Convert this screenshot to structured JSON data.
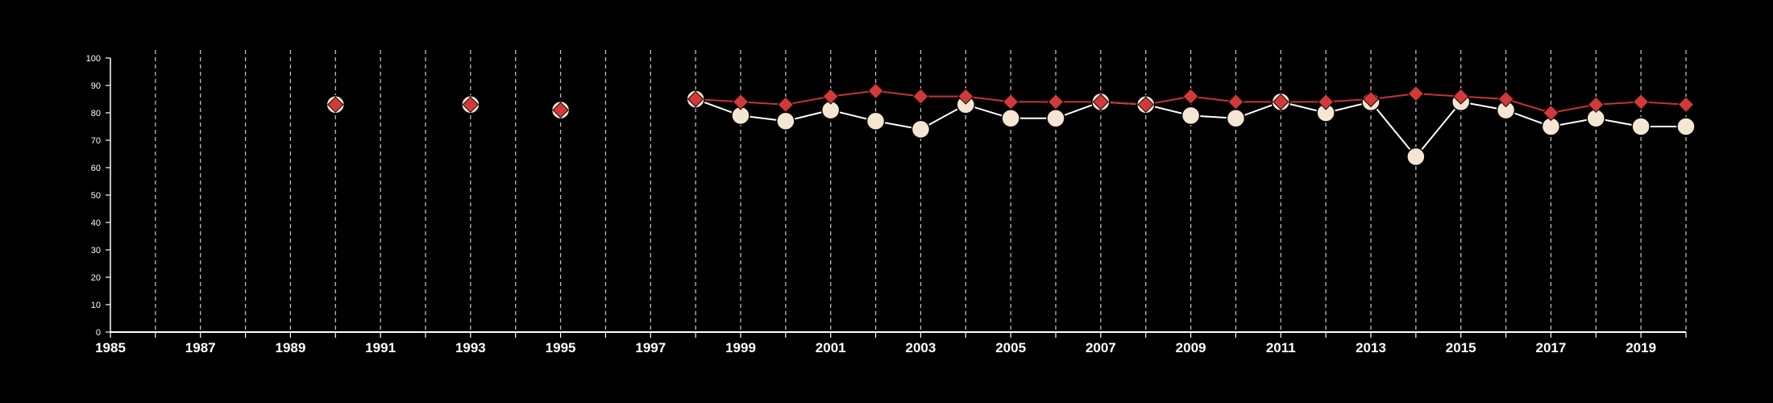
{
  "chart_data": {
    "type": "line",
    "title": "",
    "xlabel": "",
    "ylabel": "",
    "xlim": [
      1985,
      2020
    ],
    "ylim": [
      0,
      100
    ],
    "yticks": [
      0,
      10,
      20,
      30,
      40,
      50,
      60,
      70,
      80,
      90,
      100
    ],
    "xticks": [
      1985,
      1987,
      1989,
      1991,
      1993,
      1995,
      1997,
      1999,
      2001,
      2003,
      2005,
      2007,
      2009,
      2011,
      2013,
      2015,
      2017,
      2019
    ],
    "grid": "vertical dashed lines at every year",
    "legend": "none",
    "background": "#000000",
    "series": [
      {
        "marker": "circle",
        "color": "#f5e6d3",
        "line_color": "#ffffff",
        "points": [
          {
            "x": 1990,
            "y": 83
          },
          {
            "x": 1993,
            "y": 83
          },
          {
            "x": 1995,
            "y": 81
          },
          {
            "x": 1998,
            "y": 85
          },
          {
            "x": 1999,
            "y": 79
          },
          {
            "x": 2000,
            "y": 77
          },
          {
            "x": 2001,
            "y": 81
          },
          {
            "x": 2002,
            "y": 77
          },
          {
            "x": 2003,
            "y": 74
          },
          {
            "x": 2004,
            "y": 83
          },
          {
            "x": 2005,
            "y": 78
          },
          {
            "x": 2006,
            "y": 78
          },
          {
            "x": 2007,
            "y": 84
          },
          {
            "x": 2008,
            "y": 83
          },
          {
            "x": 2009,
            "y": 79
          },
          {
            "x": 2010,
            "y": 78
          },
          {
            "x": 2011,
            "y": 84
          },
          {
            "x": 2012,
            "y": 80
          },
          {
            "x": 2013,
            "y": 84
          },
          {
            "x": 2014,
            "y": 64
          },
          {
            "x": 2015,
            "y": 84
          },
          {
            "x": 2016,
            "y": 81
          },
          {
            "x": 2017,
            "y": 75
          },
          {
            "x": 2018,
            "y": 78
          },
          {
            "x": 2019,
            "y": 75
          },
          {
            "x": 2020,
            "y": 75
          }
        ]
      },
      {
        "marker": "diamond",
        "color": "#d03a3a",
        "line_color": "#c8323a",
        "points": [
          {
            "x": 1990,
            "y": 83
          },
          {
            "x": 1993,
            "y": 83
          },
          {
            "x": 1995,
            "y": 81
          },
          {
            "x": 1998,
            "y": 85
          },
          {
            "x": 1999,
            "y": 84
          },
          {
            "x": 2000,
            "y": 83
          },
          {
            "x": 2001,
            "y": 86
          },
          {
            "x": 2002,
            "y": 88
          },
          {
            "x": 2003,
            "y": 86
          },
          {
            "x": 2004,
            "y": 86
          },
          {
            "x": 2005,
            "y": 84
          },
          {
            "x": 2006,
            "y": 84
          },
          {
            "x": 2007,
            "y": 84
          },
          {
            "x": 2008,
            "y": 83
          },
          {
            "x": 2009,
            "y": 86
          },
          {
            "x": 2010,
            "y": 84
          },
          {
            "x": 2011,
            "y": 84
          },
          {
            "x": 2012,
            "y": 84
          },
          {
            "x": 2013,
            "y": 85
          },
          {
            "x": 2014,
            "y": 87
          },
          {
            "x": 2015,
            "y": 86
          },
          {
            "x": 2016,
            "y": 85
          },
          {
            "x": 2017,
            "y": 80
          },
          {
            "x": 2018,
            "y": 83
          },
          {
            "x": 2019,
            "y": 84
          },
          {
            "x": 2020,
            "y": 83
          }
        ]
      }
    ]
  }
}
